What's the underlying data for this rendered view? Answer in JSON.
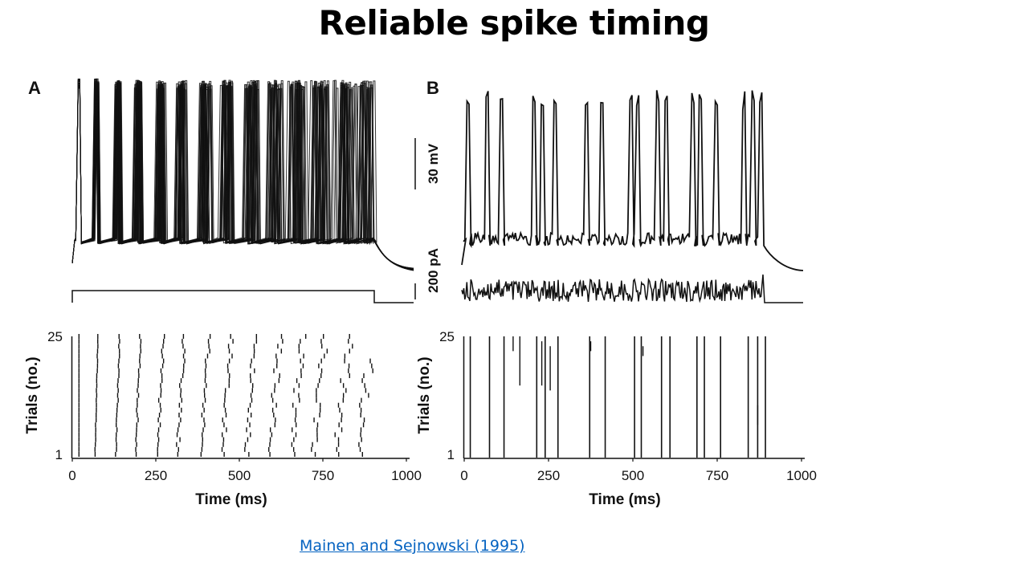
{
  "slide": {
    "title": "Reliable spike timing",
    "citation": "Mainen and Sejnowski (1995)"
  },
  "colors": {
    "ink": "#111111",
    "link": "#0563c1"
  },
  "figure": {
    "panel_a_label": "A",
    "panel_b_label": "B",
    "voltage_scale": "30 mV",
    "current_scale": "200 pA",
    "ylabel": "Trials (no.)",
    "xlabel": "Time (ms)",
    "xticks": [
      "0",
      "250",
      "500",
      "750",
      "1000"
    ],
    "yticks": [
      "1",
      "25"
    ]
  },
  "chart_data": [
    {
      "type": "raster",
      "panel": "A",
      "stimulus": "constant current step",
      "xlabel": "Time (ms)",
      "ylabel": "Trials (no.)",
      "xlim": [
        0,
        1000
      ],
      "ylim": [
        1,
        25
      ],
      "trials": 25,
      "stimulus_window_ms": [
        0,
        900
      ],
      "first_trial_spike_times_ms": [
        20,
        68,
        130,
        190,
        255,
        315,
        385,
        450,
        520,
        590,
        655,
        720,
        790,
        855
      ]
    },
    {
      "type": "raster",
      "panel": "B",
      "stimulus": "fluctuating current",
      "xlabel": "Time (ms)",
      "ylabel": "Trials (no.)",
      "xlim": [
        0,
        1000
      ],
      "ylim": [
        1,
        25
      ],
      "trials": 25,
      "stimulus_window_ms": [
        0,
        900
      ],
      "spike_times_ms": [
        18,
        75,
        118,
        215,
        240,
        278,
        372,
        418,
        505,
        525,
        585,
        610,
        690,
        712,
        760,
        842,
        870,
        893
      ]
    }
  ]
}
